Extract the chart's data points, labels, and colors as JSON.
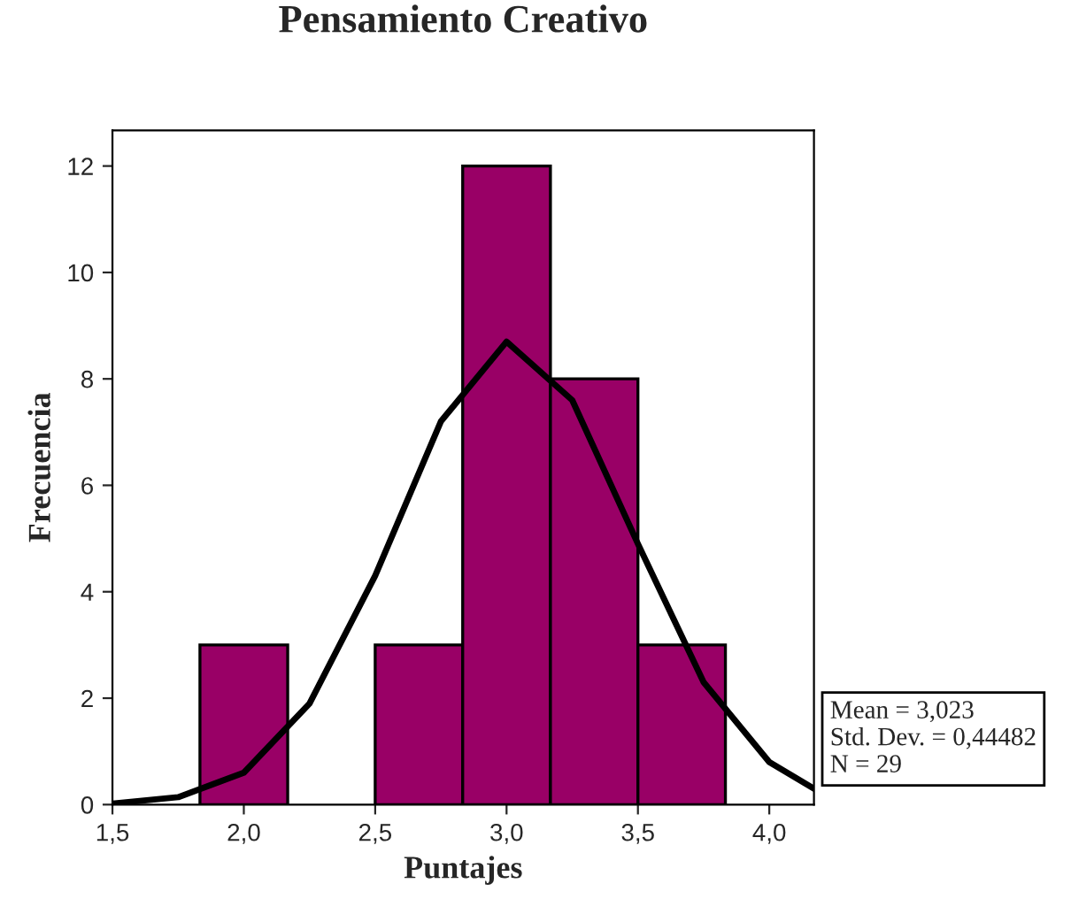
{
  "chart_data": {
    "type": "histogram",
    "title": "Pensamiento Creativo",
    "xlabel": "Puntajes",
    "ylabel": "Frecuencia",
    "bins": [
      1.833,
      2.167,
      2.5,
      2.833,
      3.167,
      3.5,
      3.833
    ],
    "values": [
      3,
      0,
      3,
      12,
      8,
      3
    ],
    "color": "#990066",
    "series": [
      {
        "type": "line",
        "color": "#000000",
        "x": [
          1.5,
          1.75,
          2.0,
          2.25,
          2.5,
          2.75,
          3.0,
          3.25,
          3.5,
          3.75,
          4.0,
          4.17
        ],
        "values": [
          0.02,
          0.14,
          0.6,
          1.9,
          4.3,
          7.2,
          8.7,
          7.6,
          4.9,
          2.3,
          0.8,
          0.3
        ]
      }
    ],
    "xlim": [
      1.5,
      4.17
    ],
    "xticks": [
      {
        "value": 1.5,
        "label": "1,5"
      },
      {
        "value": 2.0,
        "label": "2,0"
      },
      {
        "value": 2.5,
        "label": "2,5"
      },
      {
        "value": 3.0,
        "label": "3,0"
      },
      {
        "value": 3.5,
        "label": "3,5"
      },
      {
        "value": 4.0,
        "label": "4,0"
      }
    ],
    "ylim": [
      0,
      12.67
    ],
    "yticks": [
      0,
      2,
      4,
      6,
      8,
      10,
      12
    ],
    "grid": false,
    "legend": false,
    "annotations": [
      "Mean = 3,023",
      "Std. Dev. = 0,44482",
      "N = 29"
    ]
  }
}
